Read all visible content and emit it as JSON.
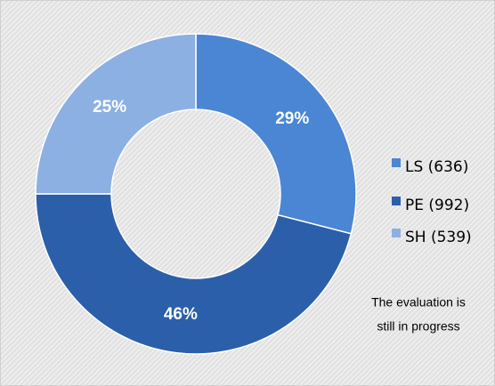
{
  "chart_data": {
    "type": "donut",
    "categories": [
      "LS (636)",
      "PE (992)",
      "SH (539)"
    ],
    "values": [
      29,
      46,
      25
    ],
    "value_labels": [
      "29%",
      "46%",
      "25%"
    ],
    "colors": [
      "#4a86d4",
      "#2b5fa9",
      "#8cb0e2"
    ],
    "annotation": [
      "The evaluation is",
      "still in progress"
    ]
  }
}
